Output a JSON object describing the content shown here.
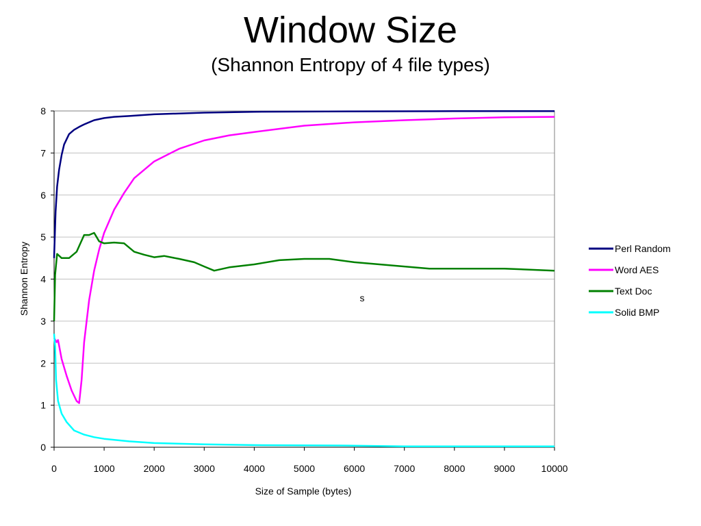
{
  "chart_data": {
    "type": "line",
    "title": "Window Size",
    "subtitle": "(Shannon Entropy of 4 file types)",
    "xlabel": "Size of Sample (bytes)",
    "ylabel": "Shannon Entropy",
    "xlim": [
      0,
      10000
    ],
    "ylim": [
      0,
      8
    ],
    "x_ticks": [
      0,
      1000,
      2000,
      3000,
      4000,
      5000,
      6000,
      7000,
      8000,
      9000,
      10000
    ],
    "y_ticks": [
      0,
      1,
      2,
      3,
      4,
      5,
      6,
      7,
      8
    ],
    "grid": "horizontal",
    "legend_position": "right",
    "annotation": "s",
    "series": [
      {
        "name": "Perl Random",
        "color": "#000080",
        "points": [
          [
            0,
            4.5
          ],
          [
            30,
            5.6
          ],
          [
            60,
            6.2
          ],
          [
            100,
            6.6
          ],
          [
            150,
            6.95
          ],
          [
            200,
            7.2
          ],
          [
            300,
            7.45
          ],
          [
            400,
            7.55
          ],
          [
            500,
            7.62
          ],
          [
            600,
            7.68
          ],
          [
            800,
            7.78
          ],
          [
            1000,
            7.83
          ],
          [
            1200,
            7.86
          ],
          [
            1500,
            7.88
          ],
          [
            2000,
            7.92
          ],
          [
            3000,
            7.96
          ],
          [
            4000,
            7.98
          ],
          [
            6000,
            7.99
          ],
          [
            8000,
            7.995
          ],
          [
            10000,
            7.995
          ]
        ]
      },
      {
        "name": "Word AES",
        "color": "#ff00ff",
        "points": [
          [
            0,
            2.6
          ],
          [
            50,
            2.5
          ],
          [
            80,
            2.55
          ],
          [
            150,
            2.1
          ],
          [
            250,
            1.7
          ],
          [
            350,
            1.35
          ],
          [
            450,
            1.1
          ],
          [
            500,
            1.05
          ],
          [
            550,
            1.6
          ],
          [
            600,
            2.5
          ],
          [
            700,
            3.5
          ],
          [
            800,
            4.2
          ],
          [
            900,
            4.7
          ],
          [
            1000,
            5.1
          ],
          [
            1200,
            5.65
          ],
          [
            1400,
            6.05
          ],
          [
            1600,
            6.4
          ],
          [
            1800,
            6.6
          ],
          [
            2000,
            6.8
          ],
          [
            2500,
            7.1
          ],
          [
            3000,
            7.3
          ],
          [
            3500,
            7.42
          ],
          [
            4000,
            7.5
          ],
          [
            5000,
            7.65
          ],
          [
            6000,
            7.73
          ],
          [
            7000,
            7.78
          ],
          [
            8000,
            7.82
          ],
          [
            9000,
            7.85
          ],
          [
            10000,
            7.86
          ]
        ]
      },
      {
        "name": "Text Doc",
        "color": "#008000",
        "points": [
          [
            0,
            3.0
          ],
          [
            20,
            4.1
          ],
          [
            60,
            4.6
          ],
          [
            150,
            4.5
          ],
          [
            300,
            4.5
          ],
          [
            450,
            4.65
          ],
          [
            600,
            5.05
          ],
          [
            700,
            5.05
          ],
          [
            800,
            5.1
          ],
          [
            900,
            4.9
          ],
          [
            1000,
            4.85
          ],
          [
            1200,
            4.87
          ],
          [
            1400,
            4.85
          ],
          [
            1600,
            4.65
          ],
          [
            1800,
            4.58
          ],
          [
            2000,
            4.52
          ],
          [
            2200,
            4.55
          ],
          [
            2500,
            4.48
          ],
          [
            2800,
            4.4
          ],
          [
            3000,
            4.3
          ],
          [
            3200,
            4.2
          ],
          [
            3500,
            4.28
          ],
          [
            4000,
            4.35
          ],
          [
            4500,
            4.45
          ],
          [
            5000,
            4.48
          ],
          [
            5500,
            4.48
          ],
          [
            6000,
            4.4
          ],
          [
            6500,
            4.35
          ],
          [
            7000,
            4.3
          ],
          [
            7500,
            4.25
          ],
          [
            8000,
            4.25
          ],
          [
            9000,
            4.25
          ],
          [
            10000,
            4.2
          ]
        ]
      },
      {
        "name": "Solid BMP",
        "color": "#00ffff",
        "points": [
          [
            0,
            2.7
          ],
          [
            20,
            2.4
          ],
          [
            40,
            1.6
          ],
          [
            80,
            1.1
          ],
          [
            150,
            0.8
          ],
          [
            250,
            0.6
          ],
          [
            400,
            0.4
          ],
          [
            600,
            0.3
          ],
          [
            800,
            0.24
          ],
          [
            1000,
            0.2
          ],
          [
            1500,
            0.14
          ],
          [
            2000,
            0.1
          ],
          [
            3000,
            0.07
          ],
          [
            4000,
            0.05
          ],
          [
            5700,
            0.04
          ],
          [
            7000,
            0.02
          ],
          [
            10000,
            0.02
          ]
        ]
      }
    ]
  }
}
